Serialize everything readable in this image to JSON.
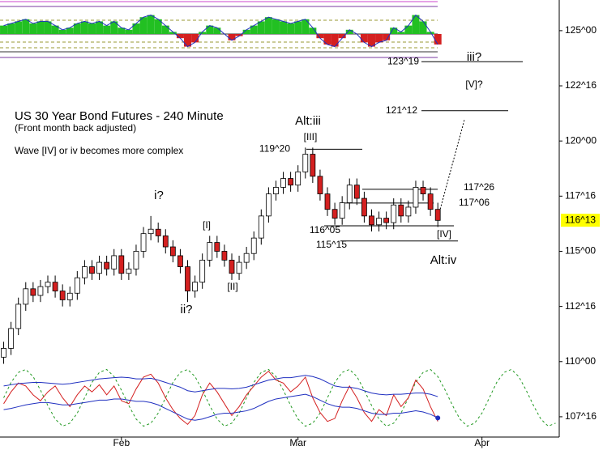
{
  "chart_data": {
    "type": "candlestick",
    "title": "US 30 Year Bond Futures - 240 Minute",
    "subtitle": "(Front month back adjusted)",
    "note": "Wave [IV] or iv becomes more complex",
    "x": [
      1,
      3,
      5,
      7,
      9,
      11,
      13,
      15,
      17,
      19,
      21,
      23,
      25,
      27,
      29,
      31,
      33,
      35,
      37,
      39,
      41,
      43,
      45,
      47,
      49,
      51,
      53,
      55,
      57,
      59,
      61,
      63,
      65,
      67,
      69,
      71,
      73,
      75,
      77,
      79,
      81,
      83,
      85,
      87,
      89,
      91,
      93,
      95,
      97,
      99,
      101,
      103,
      105,
      107,
      109,
      111,
      113,
      115,
      117,
      119
    ],
    "open": [
      110.2,
      110.6,
      111.5,
      112.6,
      113.3,
      113.0,
      113.4,
      113.6,
      113.2,
      112.8,
      113.1,
      113.8,
      114.3,
      114.0,
      114.5,
      114.2,
      114.8,
      114.0,
      114.2,
      115.0,
      115.8,
      116.0,
      115.7,
      115.2,
      114.8,
      114.3,
      113.2,
      113.6,
      114.6,
      115.4,
      115.0,
      114.6,
      114.0,
      114.5,
      114.9,
      115.6,
      116.6,
      117.6,
      117.9,
      118.3,
      118.0,
      118.6,
      119.4,
      118.4,
      117.6,
      116.9,
      116.5,
      117.2,
      118.0,
      117.4,
      116.6,
      116.2,
      116.5,
      116.3,
      117.1,
      116.6,
      117.0,
      117.9,
      117.6,
      116.9
    ],
    "high": [
      110.9,
      111.8,
      112.9,
      113.6,
      113.6,
      113.7,
      113.9,
      113.9,
      113.5,
      113.4,
      114.1,
      114.6,
      114.6,
      114.8,
      114.8,
      115.1,
      115.1,
      114.5,
      115.3,
      116.1,
      116.6,
      116.3,
      116.0,
      115.5,
      115.1,
      114.6,
      113.9,
      114.9,
      115.7,
      115.7,
      115.3,
      114.9,
      114.8,
      115.2,
      115.9,
      116.9,
      117.9,
      118.2,
      118.6,
      118.6,
      118.9,
      119.7,
      119.7,
      118.7,
      117.9,
      117.2,
      117.5,
      118.3,
      118.3,
      117.7,
      116.9,
      116.8,
      116.8,
      117.4,
      117.4,
      117.3,
      118.2,
      118.2,
      117.9,
      117.2
    ],
    "low": [
      109.9,
      110.3,
      111.2,
      112.3,
      112.7,
      112.7,
      113.1,
      112.9,
      112.5,
      112.5,
      112.8,
      113.5,
      113.7,
      113.7,
      113.9,
      113.9,
      113.7,
      113.7,
      113.9,
      114.7,
      115.5,
      115.4,
      114.9,
      114.5,
      114.0,
      112.7,
      112.9,
      113.3,
      114.3,
      114.7,
      114.3,
      113.7,
      113.7,
      114.2,
      114.6,
      115.3,
      116.3,
      117.3,
      117.6,
      117.7,
      117.7,
      118.3,
      118.1,
      117.3,
      116.6,
      116.2,
      116.2,
      116.9,
      117.1,
      116.3,
      115.9,
      115.9,
      116.0,
      116.0,
      116.3,
      116.3,
      116.7,
      117.3,
      116.6,
      116.1
    ],
    "close": [
      110.6,
      111.5,
      112.6,
      113.3,
      113.0,
      113.4,
      113.6,
      113.2,
      112.8,
      113.1,
      113.8,
      114.3,
      114.0,
      114.5,
      114.2,
      114.8,
      114.0,
      114.2,
      115.0,
      115.8,
      116.0,
      115.7,
      115.2,
      114.8,
      114.3,
      113.2,
      113.6,
      114.6,
      115.4,
      115.0,
      114.6,
      114.0,
      114.5,
      114.9,
      115.6,
      116.6,
      117.6,
      117.9,
      118.3,
      118.0,
      118.6,
      119.4,
      118.4,
      117.6,
      116.9,
      116.5,
      117.2,
      118.0,
      117.4,
      116.6,
      116.2,
      116.5,
      116.3,
      117.1,
      116.6,
      117.0,
      117.9,
      117.6,
      116.9,
      116.4
    ],
    "up_color": "#ffffff",
    "down_color": "#d42020",
    "xlim": [
      0,
      152
    ],
    "xticks": [
      {
        "value": 33,
        "label": "Feb"
      },
      {
        "value": 81,
        "label": "Mar"
      },
      {
        "value": 131,
        "label": "Apr"
      }
    ],
    "ylim": [
      106.58,
      126.39
    ],
    "yticks": [
      {
        "value": 125,
        "label": "125^00"
      },
      {
        "value": 122.5,
        "label": "122^16"
      },
      {
        "value": 120,
        "label": "120^00"
      },
      {
        "value": 117.5,
        "label": "117^16"
      },
      {
        "value": 115,
        "label": "115^00"
      },
      {
        "value": 112.5,
        "label": "112^16"
      },
      {
        "value": 110,
        "label": "110^00"
      },
      {
        "value": 107.5,
        "label": "107^16"
      }
    ],
    "last_price": {
      "value": 116.40625,
      "label": "116^13"
    },
    "levels": [
      {
        "value": 123.59375,
        "label": "123^19"
      },
      {
        "value": 121.375,
        "label": "121^12"
      },
      {
        "value": 119.625,
        "label": "119^20"
      },
      {
        "value": 117.8125,
        "label": "117^26"
      },
      {
        "value": 117.1875,
        "label": "117^06"
      },
      {
        "value": 116.15625,
        "label": "116^05"
      },
      {
        "value": 115.46875,
        "label": "115^15"
      }
    ],
    "wave_labels": [
      "i?",
      "ii?",
      "[I]",
      "[II]",
      "[III]",
      "Alt:iii",
      "Alt:iv",
      "[IV]",
      "iii?",
      "[V]?"
    ],
    "histogram": {
      "ylim": [
        -1,
        1
      ],
      "up_color": "#22c022",
      "down_color": "#d42020",
      "line_color": "#2030c0",
      "values": [
        0.4,
        0.5,
        0.6,
        0.7,
        0.5,
        0.6,
        0.6,
        0.4,
        0.2,
        0.3,
        0.5,
        0.6,
        0.5,
        0.6,
        0.4,
        0.6,
        0.3,
        0.2,
        0.5,
        0.8,
        0.9,
        0.7,
        0.4,
        0.1,
        -0.2,
        -0.6,
        -0.4,
        0.1,
        0.4,
        0.3,
        0.0,
        -0.3,
        -0.1,
        0.2,
        0.4,
        0.6,
        0.8,
        0.7,
        0.6,
        0.5,
        0.6,
        0.7,
        0.3,
        -0.2,
        -0.5,
        -0.6,
        -0.2,
        0.2,
        0.0,
        -0.4,
        -0.6,
        -0.4,
        -0.3,
        0.3,
        0.1,
        0.4,
        0.9,
        0.6,
        0.1,
        -0.5
      ]
    },
    "oscillator": {
      "ylim": [
        0,
        100
      ],
      "series": [
        {
          "color": "#d42020",
          "values": [
            40,
            60,
            75,
            70,
            55,
            45,
            60,
            70,
            50,
            35,
            55,
            70,
            60,
            72,
            55,
            70,
            45,
            40,
            65,
            85,
            90,
            75,
            50,
            30,
            15,
            5,
            20,
            55,
            75,
            60,
            40,
            20,
            35,
            55,
            70,
            85,
            95,
            80,
            75,
            60,
            70,
            85,
            50,
            25,
            10,
            15,
            45,
            70,
            50,
            25,
            10,
            30,
            20,
            55,
            35,
            50,
            80,
            65,
            35,
            10
          ]
        },
        {
          "color": "#2030c0",
          "values": [
            70,
            72,
            74,
            75,
            76,
            76,
            75,
            74,
            73,
            74,
            76,
            78,
            80,
            82,
            83,
            84,
            85,
            84,
            82,
            82,
            83,
            80,
            76,
            72,
            68,
            62,
            60,
            62,
            64,
            66,
            66,
            65,
            66,
            68,
            72,
            76,
            80,
            82,
            84,
            84,
            86,
            88,
            86,
            82,
            76,
            70,
            68,
            68,
            66,
            62,
            58,
            56,
            55,
            56,
            56,
            57,
            58,
            58,
            56,
            52
          ]
        },
        {
          "color": "#2030c0",
          "values": [
            30,
            32,
            35,
            38,
            40,
            42,
            42,
            40,
            38,
            38,
            40,
            42,
            44,
            46,
            46,
            48,
            48,
            46,
            44,
            44,
            42,
            38,
            32,
            26,
            20,
            14,
            12,
            14,
            18,
            22,
            24,
            24,
            26,
            28,
            32,
            38,
            44,
            48,
            50,
            52,
            54,
            56,
            52,
            46,
            40,
            36,
            34,
            34,
            32,
            28,
            24,
            22,
            22,
            24,
            24,
            26,
            28,
            26,
            22,
            16
          ]
        }
      ],
      "cycle": {
        "color": "#229922",
        "x": [
          1,
          3,
          5,
          7,
          9,
          11,
          13,
          15,
          17,
          19,
          21,
          23,
          25,
          27,
          29,
          31,
          33,
          35,
          37,
          39,
          41,
          43,
          45,
          47,
          49,
          51,
          53,
          55,
          57,
          59,
          61,
          63,
          65,
          67,
          69,
          71,
          73,
          75,
          77,
          79,
          81,
          83,
          85,
          87,
          89,
          91,
          93,
          95,
          97,
          99,
          101,
          103,
          105,
          107,
          109,
          111,
          113,
          115,
          117,
          119,
          121,
          123,
          125,
          127,
          129,
          131,
          133,
          135,
          137,
          139,
          141,
          143,
          145,
          147,
          149,
          151
        ],
        "values": [
          50,
          76,
          93,
          98,
          86,
          63,
          37,
          14,
          2,
          7,
          24,
          50,
          76,
          93,
          98,
          86,
          63,
          37,
          14,
          2,
          7,
          24,
          50,
          76,
          93,
          98,
          86,
          63,
          37,
          14,
          2,
          7,
          24,
          50,
          76,
          93,
          98,
          86,
          63,
          37,
          14,
          2,
          7,
          24,
          50,
          76,
          93,
          98,
          86,
          63,
          37,
          14,
          2,
          7,
          24,
          50,
          76,
          93,
          98,
          86,
          63,
          37,
          14,
          2,
          7,
          24,
          50,
          76,
          93,
          98,
          86,
          63,
          37,
          14,
          2,
          7
        ]
      }
    }
  }
}
